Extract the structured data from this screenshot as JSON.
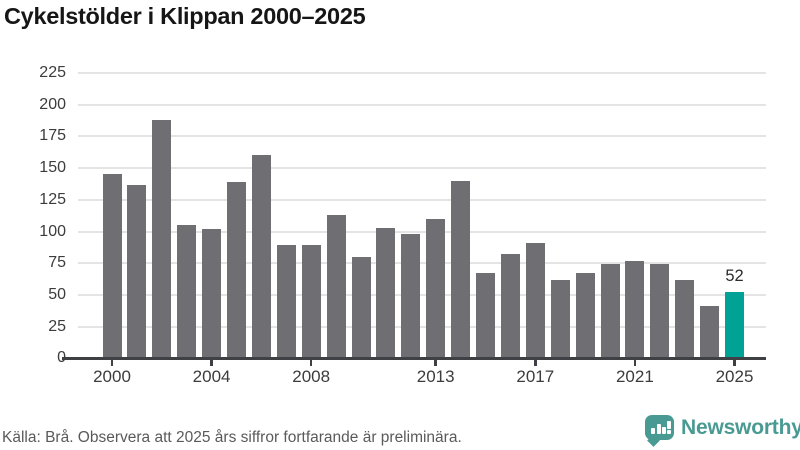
{
  "chart_data": {
    "type": "bar",
    "title": "Cykelstölder i Klippan 2000–2025",
    "categories": [
      2000,
      2001,
      2002,
      2003,
      2004,
      2005,
      2006,
      2007,
      2008,
      2009,
      2010,
      2011,
      2012,
      2013,
      2014,
      2015,
      2016,
      2017,
      2018,
      2019,
      2020,
      2021,
      2022,
      2023,
      2024,
      2025
    ],
    "values": [
      145,
      137,
      188,
      105,
      102,
      139,
      160,
      89,
      89,
      113,
      80,
      103,
      98,
      110,
      140,
      67,
      82,
      91,
      62,
      67,
      74,
      77,
      74,
      62,
      41,
      52
    ],
    "xlabel": "",
    "ylabel": "",
    "ylim": [
      0,
      225
    ],
    "y_ticks": [
      0,
      25,
      50,
      75,
      100,
      125,
      150,
      175,
      200,
      225
    ],
    "x_tick_labels": [
      2000,
      2004,
      2008,
      2013,
      2017,
      2021,
      2025
    ],
    "grid": "horizontal",
    "legend": "none",
    "highlight_index": 25,
    "annotation": {
      "index": 25,
      "text": "52"
    },
    "source_note": "Källa: Brå. Observera att 2025 års siffror fortfarande är preliminära.",
    "colors": {
      "bar": "#6e6e73",
      "highlight_bar": "#00a296",
      "gridline": "#e4e4e4",
      "axis": "#3f4043",
      "tick_text": "#3c3c3c",
      "title_text": "#161616",
      "footer_text": "#5a5a5a"
    }
  },
  "branding": {
    "logo_text": "Newsworthy",
    "logo_color": "#4a9a94",
    "logo_icon": "speech-bubble-bar-chart-icon"
  }
}
